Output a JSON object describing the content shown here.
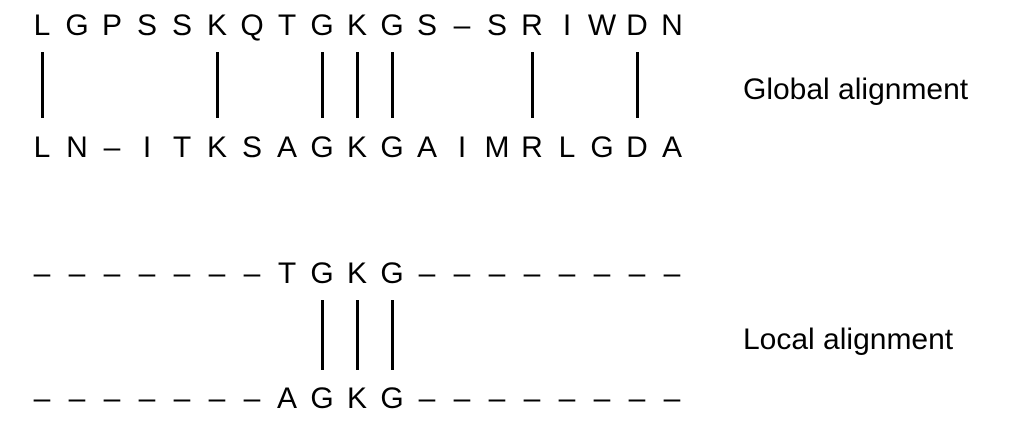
{
  "global": {
    "top": [
      "L",
      "G",
      "P",
      "S",
      "S",
      "K",
      "Q",
      "T",
      "G",
      "K",
      "G",
      "S",
      "–",
      "S",
      "R",
      "I",
      "W",
      "D",
      "N"
    ],
    "bottom": [
      "L",
      "N",
      "–",
      "I",
      "T",
      "K",
      "S",
      "A",
      "G",
      "K",
      "G",
      "A",
      "I",
      "M",
      "R",
      "L",
      "G",
      "D",
      "A"
    ],
    "matches": [
      0,
      5,
      8,
      9,
      10,
      14,
      17
    ],
    "label": "Global alignment"
  },
  "local": {
    "top": [
      "–",
      "–",
      "–",
      "–",
      "–",
      "–",
      "–",
      "T",
      "G",
      "K",
      "G",
      "–",
      "–",
      "–",
      "–",
      "–",
      "–",
      "–",
      "–"
    ],
    "bottom": [
      "–",
      "–",
      "–",
      "–",
      "–",
      "–",
      "–",
      "A",
      "G",
      "K",
      "G",
      "–",
      "–",
      "–",
      "–",
      "–",
      "–",
      "–",
      "–"
    ],
    "matches": [
      8,
      9,
      10
    ],
    "label": "Local alignment"
  }
}
